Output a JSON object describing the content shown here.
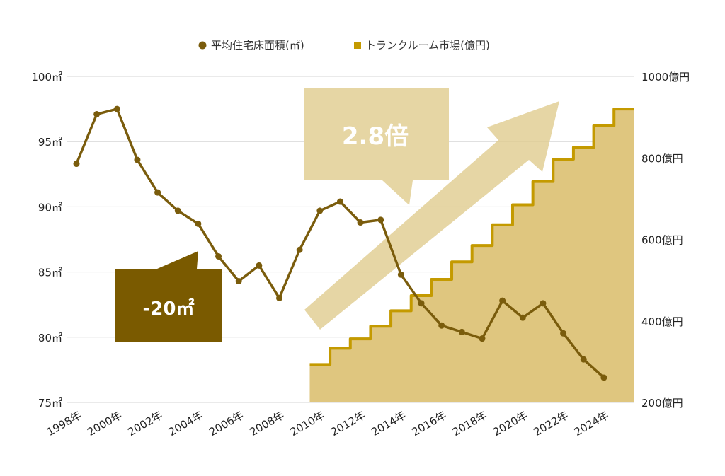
{
  "chart_data": {
    "type": "line+step-area",
    "legend": {
      "placement": "top-center",
      "entries": [
        "平均住宅床面積(㎡)",
        "トランクルーム市場(億円)"
      ]
    },
    "x_tick_labels": [
      "1998年",
      "2000年",
      "2002年",
      "2004年",
      "2006年",
      "2008年",
      "2010年",
      "2012年",
      "2014年",
      "2016年",
      "2018年",
      "2020年",
      "2022年",
      "2024年"
    ],
    "left_axis": {
      "ylim": [
        75,
        100
      ],
      "ticks": [
        75,
        80,
        85,
        90,
        95,
        100
      ],
      "tick_labels": [
        "75㎡",
        "80㎡",
        "85㎡",
        "90㎡",
        "95㎡",
        "100㎡"
      ]
    },
    "right_axis": {
      "ylim": [
        200,
        1000
      ],
      "ticks": [
        200,
        400,
        600,
        800,
        1000
      ],
      "tick_labels": [
        "200億円",
        "400億円",
        "600億円",
        "800億円",
        "1000億円"
      ]
    },
    "grid": true,
    "series": [
      {
        "name": "平均住宅床面積(㎡)",
        "axis": "left",
        "type": "line",
        "color": "#7a5c0c",
        "x": [
          1998,
          1999,
          2000,
          2001,
          2002,
          2003,
          2004,
          2005,
          2006,
          2007,
          2008,
          2009,
          2010,
          2011,
          2012,
          2013,
          2014,
          2015,
          2016,
          2017,
          2018,
          2019,
          2020,
          2021,
          2022,
          2023,
          2024
        ],
        "values": [
          93.3,
          97.1,
          97.5,
          93.6,
          91.1,
          89.7,
          88.7,
          86.2,
          84.3,
          85.5,
          83.0,
          86.7,
          89.7,
          90.4,
          88.8,
          89.0,
          84.8,
          82.6,
          80.9,
          80.4,
          79.9,
          82.8,
          81.5,
          82.6,
          80.3,
          78.3,
          76.9
        ]
      },
      {
        "name": "トランクルーム市場(億円)",
        "axis": "right",
        "type": "step-area",
        "color": "#c49a00",
        "fill": "#dfc67f",
        "x": [
          2010,
          2011,
          2012,
          2013,
          2014,
          2015,
          2016,
          2017,
          2018,
          2019,
          2020,
          2021,
          2022,
          2023,
          2024,
          2025
        ],
        "values": [
          293,
          333,
          356,
          387,
          425,
          462,
          502,
          545,
          585,
          636,
          685,
          742,
          797,
          826,
          879,
          920
        ]
      }
    ],
    "annotations": {
      "decrease": "-20㎡",
      "increase": "2.8倍"
    }
  }
}
